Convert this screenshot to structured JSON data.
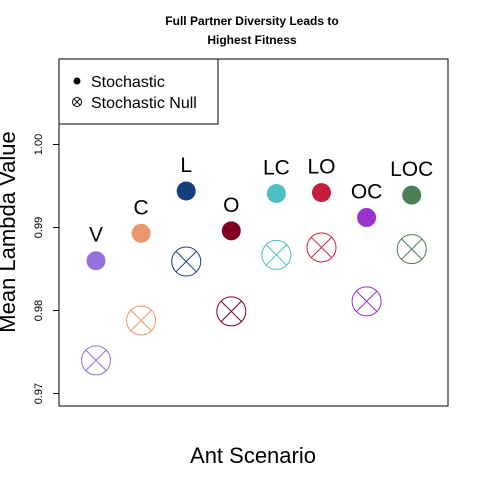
{
  "chart_data": {
    "type": "scatter",
    "title_lines": [
      "Full Partner Diversity Leads to",
      "Highest Fitness"
    ],
    "xlabel": "Ant Scenario",
    "ylabel": "Mean Lambda Value",
    "ylim": [
      0.9685,
      1.0103
    ],
    "yticks": [
      "0.97",
      "0.98",
      "0.99",
      "1.00"
    ],
    "categories": [
      "V",
      "C",
      "L",
      "O",
      "LC",
      "LO",
      "OC",
      "LOC"
    ],
    "colors": [
      "#9370DB",
      "#E9966A",
      "#153E7E",
      "#800026",
      "#4DBEC4",
      "#C41E3A",
      "#9933CC",
      "#4C7F56"
    ],
    "series": [
      {
        "name": "Stochastic",
        "marker": "filled-circle",
        "values": [
          0.986,
          0.9893,
          0.9944,
          0.9896,
          0.9941,
          0.9942,
          0.9912,
          0.9939
        ]
      },
      {
        "name": "Stochastic Null",
        "marker": "crossed-circle",
        "values": [
          0.974,
          0.9788,
          0.9859,
          0.9799,
          0.9867,
          0.9876,
          0.9811,
          0.9874
        ]
      }
    ],
    "legend": {
      "placement": "top-left",
      "entries": [
        "Stochastic",
        "Stochastic Null"
      ]
    },
    "grid": false
  }
}
